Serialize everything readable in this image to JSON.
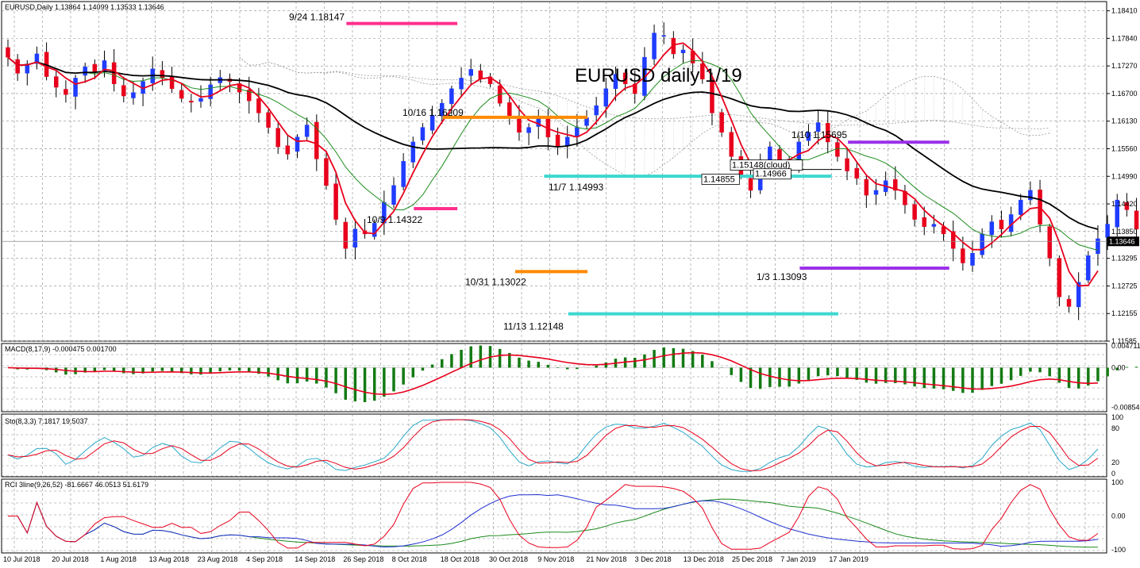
{
  "chart_data": {
    "type": "candlestick",
    "symbol_header": "EURUSD,Daily  1.13864 1.14099 1.13533 1.13646",
    "title": "EURUSD daily 1/19",
    "last_price": "1.13646",
    "price_axis": [
      "1.18410",
      "1.17840",
      "1.17270",
      "1.16700",
      "1.16130",
      "1.15560",
      "1.14990",
      "1.14420",
      "1.13850",
      "1.13295",
      "1.12725",
      "1.12155",
      "1.11585"
    ],
    "ylim": [
      1.11585,
      1.186
    ],
    "date_labels": [
      "10 Jul 2018",
      "20 Jul 2018",
      "1 Aug 2018",
      "13 Aug 2018",
      "23 Aug 2018",
      "4 Sep 2018",
      "14 Sep 2018",
      "26 Sep 2018",
      "8 Oct 2018",
      "18 Oct 2018",
      "30 Oct 2018",
      "9 Nov 2018",
      "21 Nov 2018",
      "3 Dec 2018",
      "13 Dec 2018",
      "25 Dec 2018",
      "7 Jan 2019",
      "17 Jan 2019"
    ],
    "closes": [
      1.1745,
      1.1712,
      1.1731,
      1.1752,
      1.1705,
      1.1683,
      1.1668,
      1.1702,
      1.1725,
      1.1715,
      1.1738,
      1.169,
      1.1665,
      1.1672,
      1.1695,
      1.1721,
      1.1702,
      1.168,
      1.166,
      1.1652,
      1.166,
      1.1688,
      1.1703,
      1.1695,
      1.1673,
      1.1655,
      1.163,
      1.16,
      1.156,
      1.1545,
      1.158,
      1.1605,
      1.1535,
      1.148,
      1.141,
      1.135,
      1.139,
      1.138,
      1.1402,
      1.1445,
      1.148,
      1.153,
      1.157,
      1.16,
      1.1625,
      1.165,
      1.168,
      1.1702,
      1.172,
      1.17,
      1.169,
      1.165,
      1.162,
      1.159,
      1.16,
      1.162,
      1.158,
      1.156,
      1.158,
      1.16,
      1.162,
      1.1645,
      1.168,
      1.171,
      1.169,
      1.167,
      1.1745,
      1.1795,
      1.179,
      1.1752,
      1.176,
      1.1733,
      1.17,
      1.163,
      1.159,
      1.154,
      1.15,
      1.147,
      1.152,
      1.156,
      1.153,
      1.152,
      1.157,
      1.159,
      1.161,
      1.157,
      1.154,
      1.151,
      1.1495,
      1.146,
      1.147,
      1.149,
      1.147,
      1.144,
      1.141,
      1.1395,
      1.14,
      1.138,
      1.135,
      1.132,
      1.134,
      1.138,
      1.1405,
      1.139,
      1.142,
      1.145,
      1.147,
      1.14,
      1.133,
      1.125,
      1.123,
      1.128,
      1.1335,
      1.137,
      1.14,
      1.145,
      1.143,
      1.139,
      1.137,
      1.139,
      1.1405,
      1.137,
      1.133,
      1.131,
      1.1335,
      1.1365,
      1.14,
      1.1385,
      1.136,
      1.134,
      1.1355,
      1.138,
      1.1395,
      1.137,
      1.134,
      1.136,
      1.138,
      1.135,
      1.133,
      1.131,
      1.1345,
      1.1375,
      1.14,
      1.142,
      1.141,
      1.138,
      1.136,
      1.139,
      1.142,
      1.14,
      1.138,
      1.142,
      1.144,
      1.143,
      1.141,
      1.137,
      1.14,
      1.1395,
      1.144,
      1.154,
      1.153,
      1.149,
      1.147,
      1.145,
      1.142,
      1.14,
      1.1388,
      1.137,
      1.1365
    ],
    "annotations": [
      {
        "text": "9/24 1.18147",
        "price": 1.18147
      },
      {
        "text": "10/9 1.14322",
        "price": 1.14322
      },
      {
        "text": "10/16 1.16209",
        "price": 1.16209
      },
      {
        "text": "10/31 1.13022",
        "price": 1.13022
      },
      {
        "text": "11/7 1.14993",
        "price": 1.14993
      },
      {
        "text": "11/13 1.12148",
        "price": 1.12148
      },
      {
        "text": "1/10 1.15695",
        "price": 1.15695
      },
      {
        "text": "1/3 1.13093",
        "price": 1.13093
      }
    ],
    "boxed_labels": [
      {
        "text": "1.15148(cloud)",
        "price": 1.15148
      },
      {
        "text": "1.14855",
        "price": 1.14855
      },
      {
        "text": "1.14966",
        "price": 1.14966
      }
    ],
    "macd": {
      "header": "MACD(8,17,9) -0.000475 0.001700",
      "axis": [
        "0.004711",
        "0.00",
        "-0.00854"
      ],
      "ylim": [
        -0.0095,
        0.0052
      ]
    },
    "stochastic": {
      "header": "Sto(8,3,3) 7.1817 19.5037",
      "axis": [
        "100",
        "80",
        "20",
        "0"
      ],
      "ylim": [
        0,
        100
      ]
    },
    "rci": {
      "header": "RCI 3line(9,26,52) -81.6667 46.0513 51.6179",
      "axis": [
        "100",
        "0.00",
        "-100"
      ],
      "ylim": [
        -100,
        100
      ]
    },
    "colors": {
      "bull": "#1f3cff",
      "bear": "#e8001c",
      "ma_red": "#e8001c",
      "ma_black": "#000000",
      "ma_green": "#1a8a1a",
      "magenta": "#ff2e8c",
      "orange": "#ff8a00",
      "cyan": "#3cd8d0",
      "purple": "#9b30e8",
      "histogram": "#137a13",
      "grid": "#8c8c8c"
    }
  }
}
